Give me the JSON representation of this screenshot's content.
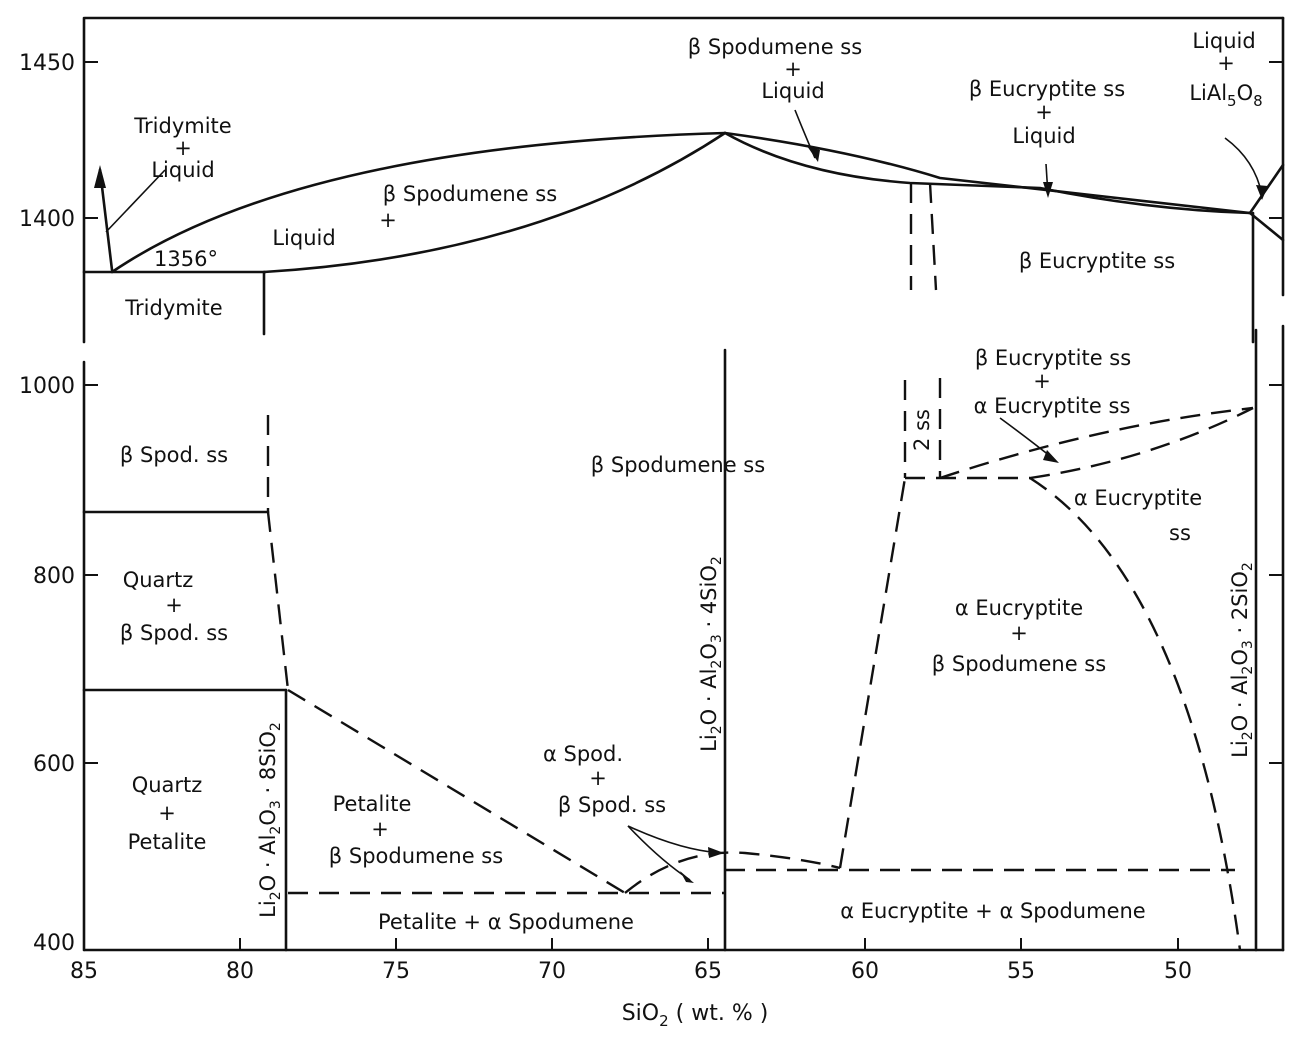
{
  "chart_data": {
    "type": "phase-diagram",
    "xlabel": "SiO2 (wt. %)",
    "x_ticks": [
      85,
      80,
      75,
      70,
      65,
      60,
      55,
      50
    ],
    "xlim": [
      85,
      46.5
    ],
    "upper_panel": {
      "y_ticks": [
        1400,
        1450
      ],
      "ylim": [
        1366,
        1466
      ]
    },
    "lower_panel": {
      "y_ticks": [
        400,
        600,
        800,
        1000
      ],
      "ylim": [
        400,
        1010
      ]
    },
    "temperature_annotation": "1356°",
    "compounds": [
      {
        "name": "Li2O·Al2O3·8SiO2",
        "sio2": 78.5
      },
      {
        "name": "Li2O·Al2O3·4SiO2",
        "sio2": 64.5
      },
      {
        "name": "Li2O·Al2O3·2SiO2",
        "sio2": 47.6
      }
    ],
    "regions": {
      "tridymite_liquid": [
        "Tridymite",
        "+",
        "Liquid"
      ],
      "tridymite": "Tridymite",
      "liquid": "Liquid",
      "bspod_upper": [
        "β Spodumene ss",
        "+"
      ],
      "bspod_liquid": [
        "β Spodumene ss",
        "+",
        "Liquid"
      ],
      "beucr_liquid": [
        "β Eucryptite ss",
        "+",
        "Liquid"
      ],
      "liquid_lial": [
        "Liquid",
        "+",
        "LiAl5O8"
      ],
      "beucr_upper": "β Eucryptite ss",
      "bspod_ss_low": "β Spod. ss",
      "quartz_bspod": [
        "Quartz",
        "+",
        "β Spod. ss"
      ],
      "quartz_petalite": [
        "Quartz",
        "+",
        "Petalite"
      ],
      "bspod_mid": "β Spodumene ss",
      "petalite_bspod": [
        "Petalite",
        "+",
        "β Spodumene ss"
      ],
      "petalite_aspod": "Petalite + α Spodumene",
      "aspod_bspod": [
        "α Spod.",
        "+",
        "β Spod. ss"
      ],
      "beucr_aeucr": [
        "β Eucryptite ss",
        "+",
        "α Eucryptite ss"
      ],
      "two_ss": "2 ss",
      "aeucr": [
        "α Eucryptite",
        "ss"
      ],
      "aeucr_bspod": [
        "α Eucryptite",
        "+",
        "β Spodumene ss"
      ],
      "aeucr_aspod": "α Eucryptite + α Spodumene"
    }
  }
}
